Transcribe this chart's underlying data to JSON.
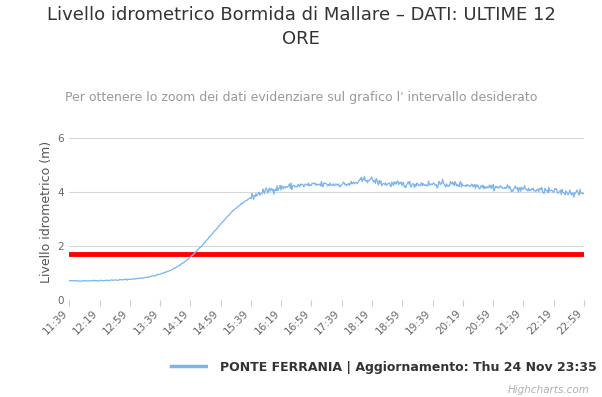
{
  "title": "Livello idrometrico Bormida di Mallare – DATI: ULTIME 12\nORE",
  "subtitle": "Per ottenere lo zoom dei dati evidenziare sul grafico l' intervallo desiderato",
  "ylabel": "Livello idrometrico (m)",
  "ylim": [
    0,
    6.5
  ],
  "yticks": [
    0,
    2,
    4,
    6
  ],
  "line_color": "#7cb5ec",
  "red_line_y": 1.7,
  "red_line_color": "#ff0000",
  "background_color": "#ffffff",
  "plot_bg_color": "#ffffff",
  "grid_color": "#d8d8d8",
  "legend_label": "PONTE FERRANIA | Aggiornamento: Thu 24 Nov 23:35",
  "watermark": "Highcharts.com",
  "title_fontsize": 13,
  "subtitle_fontsize": 9,
  "ylabel_fontsize": 9,
  "tick_fontsize": 7.5,
  "x_labels": [
    "11:39",
    "12:19",
    "12:59",
    "13:39",
    "14:19",
    "14:59",
    "15:39",
    "16:19",
    "16:59",
    "17:39",
    "18:19",
    "18:59",
    "19:39",
    "20:19",
    "20:59",
    "21:39",
    "22:19",
    "22:59"
  ]
}
